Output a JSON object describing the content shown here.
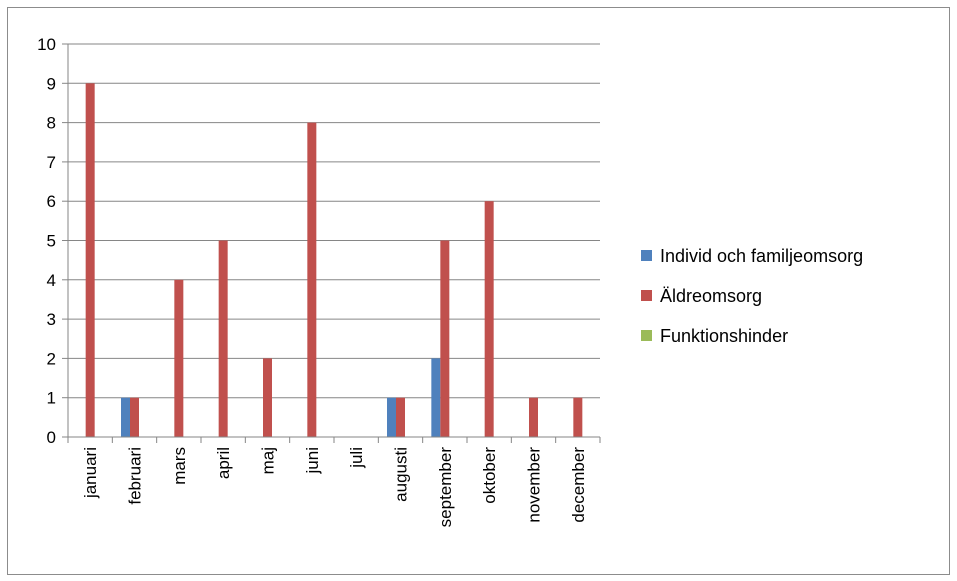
{
  "chart_data": {
    "type": "bar",
    "categories": [
      "januari",
      "februari",
      "mars",
      "april",
      "maj",
      "juni",
      "juli",
      "augusti",
      "september",
      "oktober",
      "november",
      "december"
    ],
    "series": [
      {
        "name": "Individ och familjeomsorg",
        "color": "#4F81BD",
        "values": [
          0,
          1,
          0,
          0,
          0,
          0,
          0,
          1,
          2,
          0,
          0,
          0
        ]
      },
      {
        "name": "Äldreomsorg",
        "color": "#C0504D",
        "values": [
          9,
          1,
          4,
          5,
          2,
          8,
          0,
          1,
          5,
          6,
          1,
          1
        ]
      },
      {
        "name": "Funktionshinder",
        "color": "#9BBB59",
        "values": [
          0,
          0,
          0,
          0,
          0,
          0,
          0,
          0,
          0,
          0,
          0,
          0
        ]
      }
    ],
    "ylim": [
      0,
      10
    ],
    "yticks": [
      "0",
      "1",
      "2",
      "3",
      "4",
      "5",
      "6",
      "7",
      "8",
      "9",
      "10"
    ],
    "grid": true,
    "legend_position": "right"
  }
}
